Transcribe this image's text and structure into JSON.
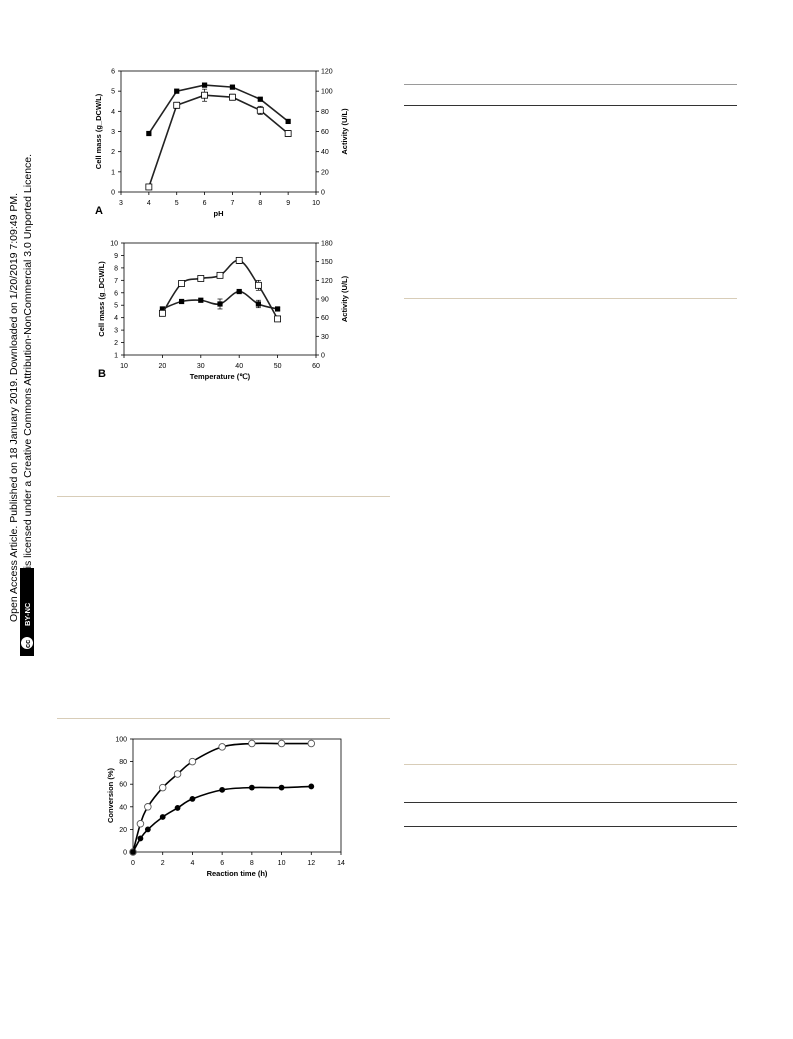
{
  "license": {
    "line1": "Open Access Article. Published on 18 January 2019. Downloaded on 1/20/2019 7:09:49 PM.",
    "line2": "This article is licensed under a Creative Commons Attribution-NonCommercial 3.0 Unported Licence.",
    "badge_cc": "cc",
    "badge_text": "BY-NC"
  },
  "colors": {
    "rule_tan": "#d8cdb8",
    "rule_gray": "#9a9a9a",
    "ink": "#000000"
  },
  "chart_data": [
    {
      "type": "line",
      "panel_label": "A",
      "xlabel": "pH",
      "ylabel": "Cell mass (g_DCW/L)",
      "y2label": "Activity (U/L)",
      "xlim": [
        3,
        10
      ],
      "ylim": [
        0,
        6
      ],
      "y2lim": [
        0,
        120
      ],
      "xticks": [
        "3",
        "4",
        "5",
        "6",
        "7",
        "8",
        "9",
        "10"
      ],
      "yticks": [
        "0",
        "1",
        "2",
        "3",
        "4",
        "5",
        "6"
      ],
      "y2ticks": [
        "0",
        "20",
        "40",
        "60",
        "80",
        "100",
        "120"
      ],
      "series": [
        {
          "marker": "filled-square",
          "axis": "left",
          "x": [
            4,
            5,
            6,
            7,
            8,
            9
          ],
          "y": [
            2.9,
            5.0,
            5.3,
            5.2,
            4.6,
            3.5
          ]
        },
        {
          "marker": "open-square",
          "axis": "right",
          "x": [
            4,
            5,
            6,
            7,
            8,
            9
          ],
          "y": [
            5,
            86,
            96,
            94,
            81,
            58
          ],
          "err": [
            2,
            3,
            6,
            3,
            4,
            3
          ]
        }
      ]
    },
    {
      "type": "line",
      "panel_label": "B",
      "xlabel": "Temperature (℃)",
      "ylabel": "Cell mass (g_DCW/L)",
      "y2label": "Activity (U/L)",
      "xlim": [
        10,
        60
      ],
      "ylim": [
        1,
        10
      ],
      "y2lim": [
        0,
        180
      ],
      "xticks": [
        "10",
        "20",
        "30",
        "40",
        "50",
        "60"
      ],
      "yticks": [
        "1",
        "2",
        "3",
        "4",
        "5",
        "6",
        "7",
        "8",
        "9",
        "10"
      ],
      "y2ticks": [
        "0",
        "30",
        "60",
        "90",
        "120",
        "150",
        "180"
      ],
      "series": [
        {
          "marker": "filled-square",
          "axis": "left",
          "x": [
            20,
            25,
            30,
            35,
            40,
            45,
            50
          ],
          "y": [
            4.7,
            5.3,
            5.4,
            5.1,
            6.1,
            5.1,
            4.7
          ],
          "err": [
            0,
            0,
            0,
            0.4,
            0.1,
            0.3,
            0.1
          ]
        },
        {
          "marker": "open-square",
          "axis": "right",
          "x": [
            20,
            25,
            30,
            35,
            40,
            45,
            50
          ],
          "y": [
            67,
            115,
            123,
            128,
            152,
            112,
            58
          ],
          "err": [
            3,
            2,
            2,
            2,
            5,
            8,
            3
          ]
        }
      ]
    },
    {
      "type": "line",
      "xlabel": "Reaction time (h)",
      "ylabel": "Conversion (%)",
      "xlim": [
        0,
        14
      ],
      "ylim": [
        0,
        100
      ],
      "xticks": [
        "0",
        "2",
        "4",
        "6",
        "8",
        "10",
        "12",
        "14"
      ],
      "yticks": [
        "0",
        "20",
        "40",
        "60",
        "80",
        "100"
      ],
      "series": [
        {
          "marker": "open-circle",
          "x": [
            0,
            0.5,
            1,
            2,
            3,
            4,
            6,
            8,
            10,
            12
          ],
          "y": [
            0,
            25,
            40,
            57,
            69,
            80,
            93,
            96,
            96,
            96
          ]
        },
        {
          "marker": "filled-circle",
          "x": [
            0,
            0.5,
            1,
            2,
            3,
            4,
            6,
            8,
            10,
            12
          ],
          "y": [
            0,
            12,
            20,
            31,
            39,
            47,
            55,
            57,
            57,
            58
          ]
        }
      ]
    }
  ]
}
